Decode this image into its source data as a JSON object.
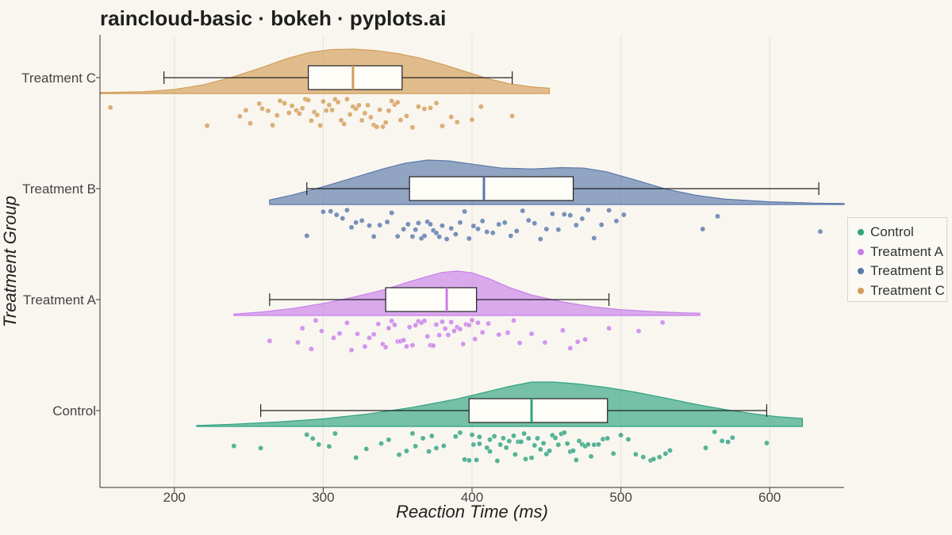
{
  "title": "raincloud-basic · bokeh · pyplots.ai",
  "chart_data": {
    "type": "raincloud",
    "xlabel": "Reaction Time (ms)",
    "ylabel": "Treatment Group",
    "xlim": [
      150,
      650
    ],
    "xticks": [
      200,
      300,
      400,
      500,
      600
    ],
    "grid": "vertical",
    "legend_position": "right",
    "groups": [
      {
        "name": "Control",
        "color": "#2ea37f",
        "box": {
          "whisker_low": 258,
          "q1": 398,
          "median": 440,
          "q3": 491,
          "whisker_high": 598
        },
        "density_range": [
          215,
          622
        ],
        "density": [
          [
            215,
            0.02
          ],
          [
            240,
            0.05
          ],
          [
            270,
            0.1
          ],
          [
            300,
            0.17
          ],
          [
            330,
            0.28
          ],
          [
            360,
            0.43
          ],
          [
            390,
            0.62
          ],
          [
            410,
            0.78
          ],
          [
            425,
            0.9
          ],
          [
            440,
            1.0
          ],
          [
            455,
            1.0
          ],
          [
            470,
            0.96
          ],
          [
            490,
            0.88
          ],
          [
            510,
            0.77
          ],
          [
            530,
            0.64
          ],
          [
            550,
            0.5
          ],
          [
            570,
            0.38
          ],
          [
            590,
            0.28
          ],
          [
            605,
            0.22
          ],
          [
            622,
            0.18
          ]
        ],
        "points": [
          240,
          258,
          289,
          293,
          297,
          304,
          308,
          322,
          329,
          339,
          344,
          351,
          356,
          360,
          362,
          367,
          371,
          373,
          376,
          381,
          389,
          392,
          395,
          398,
          400,
          401,
          403,
          405,
          405,
          410,
          412,
          412,
          415,
          417,
          419,
          421,
          423,
          425,
          428,
          429,
          431,
          433,
          435,
          436,
          438,
          440,
          442,
          444,
          446,
          448,
          450,
          452,
          454,
          456,
          458,
          460,
          462,
          464,
          466,
          468,
          470,
          472,
          474,
          476,
          478,
          480,
          482,
          485,
          488,
          491,
          495,
          500,
          505,
          510,
          515,
          520,
          522,
          526,
          530,
          533,
          557,
          563,
          568,
          572,
          575,
          598
        ]
      },
      {
        "name": "Treatment A",
        "color": "#c77fe9",
        "box": {
          "whisker_low": 264,
          "q1": 342,
          "median": 383,
          "q3": 403,
          "whisker_high": 492
        },
        "density_range": [
          240,
          553
        ],
        "density": [
          [
            240,
            0.03
          ],
          [
            260,
            0.08
          ],
          [
            280,
            0.16
          ],
          [
            300,
            0.27
          ],
          [
            320,
            0.41
          ],
          [
            340,
            0.57
          ],
          [
            355,
            0.73
          ],
          [
            370,
            0.88
          ],
          [
            380,
            0.97
          ],
          [
            390,
            1.0
          ],
          [
            400,
            0.96
          ],
          [
            412,
            0.82
          ],
          [
            425,
            0.63
          ],
          [
            440,
            0.46
          ],
          [
            460,
            0.31
          ],
          [
            480,
            0.2
          ],
          [
            500,
            0.13
          ],
          [
            520,
            0.09
          ],
          [
            540,
            0.06
          ],
          [
            553,
            0.05
          ]
        ],
        "points": [
          264,
          283,
          286,
          292,
          295,
          299,
          307,
          311,
          316,
          319,
          323,
          328,
          331,
          334,
          337,
          340,
          342,
          344,
          346,
          348,
          350,
          352,
          354,
          356,
          358,
          360,
          362,
          364,
          366,
          368,
          370,
          372,
          374,
          376,
          378,
          380,
          382,
          384,
          386,
          388,
          390,
          392,
          394,
          396,
          398,
          400,
          402,
          404,
          407,
          411,
          418,
          424,
          428,
          432,
          440,
          449,
          461,
          466,
          471,
          476,
          492,
          512,
          528
        ]
      },
      {
        "name": "Treatment B",
        "color": "#5978a9",
        "box": {
          "whisker_low": 289,
          "q1": 358,
          "median": 408,
          "q3": 468,
          "whisker_high": 633
        },
        "density_range": [
          264,
          650
        ],
        "density": [
          [
            264,
            0.1
          ],
          [
            280,
            0.22
          ],
          [
            300,
            0.4
          ],
          [
            320,
            0.6
          ],
          [
            340,
            0.8
          ],
          [
            355,
            0.93
          ],
          [
            370,
            1.0
          ],
          [
            385,
            0.98
          ],
          [
            400,
            0.91
          ],
          [
            420,
            0.82
          ],
          [
            440,
            0.8
          ],
          [
            460,
            0.83
          ],
          [
            475,
            0.82
          ],
          [
            490,
            0.74
          ],
          [
            510,
            0.55
          ],
          [
            530,
            0.35
          ],
          [
            550,
            0.21
          ],
          [
            570,
            0.12
          ],
          [
            600,
            0.06
          ],
          [
            630,
            0.03
          ],
          [
            650,
            0.02
          ]
        ],
        "points": [
          289,
          300,
          305,
          309,
          313,
          316,
          319,
          322,
          326,
          331,
          334,
          338,
          343,
          346,
          350,
          354,
          357,
          360,
          362,
          364,
          366,
          368,
          370,
          372,
          374,
          376,
          378,
          380,
          383,
          386,
          389,
          392,
          395,
          398,
          401,
          404,
          407,
          410,
          414,
          418,
          422,
          426,
          430,
          434,
          438,
          442,
          446,
          450,
          454,
          458,
          462,
          466,
          470,
          474,
          478,
          482,
          487,
          492,
          497,
          502,
          555,
          565,
          634
        ]
      },
      {
        "name": "Treatment C",
        "color": "#d29d57",
        "box": {
          "whisker_low": 193,
          "q1": 290,
          "median": 320,
          "q3": 353,
          "whisker_high": 427
        },
        "density_range": [
          150,
          452
        ],
        "density": [
          [
            150,
            0.02
          ],
          [
            180,
            0.04
          ],
          [
            200,
            0.09
          ],
          [
            220,
            0.2
          ],
          [
            240,
            0.38
          ],
          [
            260,
            0.6
          ],
          [
            275,
            0.78
          ],
          [
            290,
            0.92
          ],
          [
            305,
            0.99
          ],
          [
            320,
            1.0
          ],
          [
            335,
            0.97
          ],
          [
            350,
            0.9
          ],
          [
            365,
            0.8
          ],
          [
            380,
            0.66
          ],
          [
            395,
            0.5
          ],
          [
            410,
            0.34
          ],
          [
            425,
            0.22
          ],
          [
            440,
            0.15
          ],
          [
            452,
            0.12
          ]
        ],
        "points": [
          157,
          222,
          244,
          248,
          251,
          257,
          259,
          263,
          266,
          269,
          271,
          274,
          277,
          279,
          282,
          284,
          286,
          288,
          290,
          292,
          294,
          296,
          298,
          300,
          302,
          304,
          306,
          308,
          310,
          312,
          314,
          316,
          318,
          320,
          322,
          324,
          326,
          328,
          330,
          332,
          334,
          336,
          338,
          340,
          342,
          344,
          346,
          348,
          350,
          352,
          356,
          360,
          364,
          368,
          372,
          376,
          380,
          386,
          390,
          400,
          406,
          427
        ]
      }
    ]
  }
}
